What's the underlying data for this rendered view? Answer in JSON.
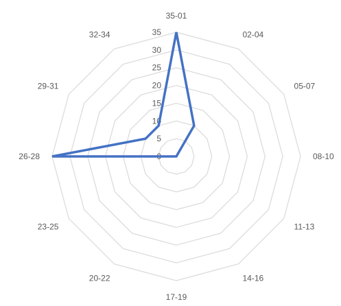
{
  "chart_data": {
    "type": "radar",
    "categories": [
      "35-01",
      "02-04",
      "05-07",
      "08-10",
      "11-13",
      "14-16",
      "17-19",
      "20-22",
      "23-25",
      "26-28",
      "29-31",
      "32-34"
    ],
    "series": [
      {
        "values": [
          35,
          10,
          0,
          0,
          0,
          0,
          0,
          0,
          0,
          35,
          10,
          10
        ]
      }
    ],
    "r_ticks": [
      0,
      5,
      10,
      15,
      20,
      25,
      30,
      35
    ],
    "rlim": [
      0,
      35
    ],
    "grid": true,
    "colors": {
      "series": "#4472C4",
      "grid": "#d9d9d9",
      "text": "#595959"
    }
  }
}
